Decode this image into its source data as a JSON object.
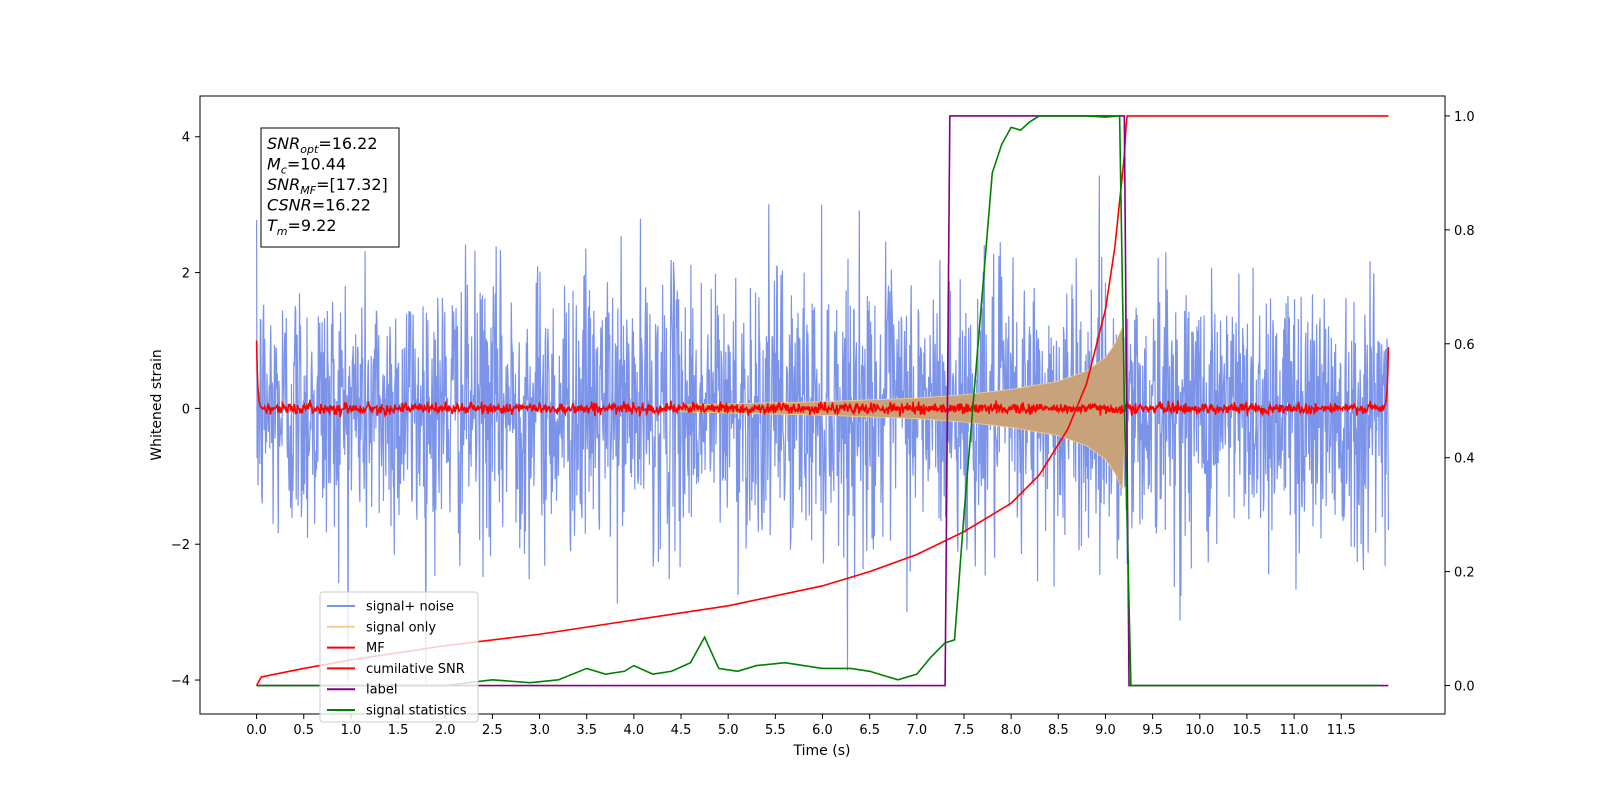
{
  "chart_data": {
    "type": "line",
    "title": "",
    "xlabel": "Time (s)",
    "ylabel": "Whitened strain",
    "xlim": [
      -0.6,
      12.6
    ],
    "ylim": [
      -4.5,
      4.6
    ],
    "y2lim": [
      -0.05,
      1.035
    ],
    "grid": false,
    "legend_position": "lower-left",
    "x_ticks": [
      "0.0",
      "0.5",
      "1.0",
      "1.5",
      "2.0",
      "2.5",
      "3.0",
      "3.5",
      "4.0",
      "4.5",
      "5.0",
      "5.5",
      "6.0",
      "6.5",
      "7.0",
      "7.5",
      "8.0",
      "8.5",
      "9.0",
      "9.5",
      "10.0",
      "10.5",
      "11.0",
      "11.5"
    ],
    "y_ticks": [
      "4",
      "2",
      "0",
      "−2",
      "−4"
    ],
    "y2_ticks": [
      "1.0",
      "0.8",
      "0.6",
      "0.4",
      "0.2",
      "0.0"
    ],
    "annotation": {
      "lines": [
        {
          "var": "SNR",
          "sub": "opt",
          "value": "=16.22"
        },
        {
          "var": "M",
          "sub": "c",
          "value": "=10.44"
        },
        {
          "var": "SNR",
          "sub": "MF",
          "value": "=[17.32]"
        },
        {
          "var": "CSNR",
          "sub": "",
          "value": "=16.22"
        },
        {
          "var": "T",
          "sub": "m",
          "value": "=9.22"
        }
      ]
    },
    "series": [
      {
        "name": "signal+ noise",
        "color": "#7b93e8",
        "axis": "left",
        "style": "noise band around zero, sigma ~1.0, range about -4 to 4.2, spanning 0 to 12 s",
        "x_range": [
          0,
          12
        ],
        "noise_sigma": 1.0
      },
      {
        "name": "signal only",
        "color": "#f5cf8a",
        "axis": "left",
        "style": "chirp envelope growing from ~0.1 at 4.5 s to ~1.2 at 9.15 s, then abruptly ending",
        "envelope": [
          [
            4.5,
            0.05
          ],
          [
            6.0,
            0.1
          ],
          [
            7.0,
            0.15
          ],
          [
            7.5,
            0.2
          ],
          [
            8.0,
            0.28
          ],
          [
            8.5,
            0.4
          ],
          [
            8.8,
            0.55
          ],
          [
            9.0,
            0.75
          ],
          [
            9.1,
            0.95
          ],
          [
            9.18,
            1.2
          ],
          [
            9.22,
            0
          ]
        ]
      },
      {
        "name": "MF",
        "color": "#ff0000",
        "axis": "left",
        "style": "matched filter output, small noise around 0 with edge spikes to ~1.0 at t=0 and t=12",
        "edge_values": [
          1.0,
          0.9
        ],
        "noise_sigma": 0.04
      },
      {
        "name": "cumilative SNR",
        "color": "#ff0000",
        "axis": "right",
        "x": [
          0,
          0.05,
          0.5,
          1,
          2,
          3,
          4,
          5,
          6,
          6.5,
          7,
          7.5,
          8,
          8.3,
          8.6,
          8.8,
          9.0,
          9.1,
          9.15,
          9.2,
          9.22,
          9.23,
          12.0
        ],
        "values": [
          0.0,
          0.015,
          0.03,
          0.045,
          0.07,
          0.09,
          0.115,
          0.14,
          0.175,
          0.2,
          0.23,
          0.27,
          0.32,
          0.37,
          0.45,
          0.53,
          0.66,
          0.77,
          0.85,
          0.93,
          0.985,
          1.0,
          1.0
        ]
      },
      {
        "name": "label",
        "color": "#800080",
        "axis": "right",
        "x": [
          0,
          7.3,
          7.35,
          9.2,
          9.25,
          12.0
        ],
        "values": [
          0.0,
          0.0,
          1.0,
          1.0,
          0.0,
          0.0
        ]
      },
      {
        "name": "signal statistics",
        "color": "#008000",
        "axis": "right",
        "x": [
          0,
          1.0,
          2.0,
          2.5,
          2.9,
          3.2,
          3.5,
          3.7,
          3.9,
          4.0,
          4.2,
          4.4,
          4.6,
          4.75,
          4.9,
          5.1,
          5.3,
          5.6,
          5.8,
          6.0,
          6.3,
          6.5,
          6.8,
          7.0,
          7.15,
          7.3,
          7.4,
          7.5,
          7.6,
          7.7,
          7.8,
          7.9,
          8.0,
          8.1,
          8.2,
          8.3,
          8.5,
          8.8,
          9.0,
          9.15,
          9.2,
          9.27,
          9.3,
          11.9
        ],
        "values": [
          0.0,
          0.0,
          0.0,
          0.01,
          0.005,
          0.01,
          0.03,
          0.02,
          0.025,
          0.035,
          0.02,
          0.025,
          0.04,
          0.085,
          0.03,
          0.025,
          0.035,
          0.04,
          0.035,
          0.03,
          0.03,
          0.025,
          0.01,
          0.02,
          0.05,
          0.075,
          0.08,
          0.3,
          0.5,
          0.7,
          0.9,
          0.95,
          0.98,
          0.975,
          0.99,
          1.0,
          1.0,
          1.0,
          0.998,
          1.0,
          0.5,
          0.0,
          0.0,
          0.0
        ]
      }
    ]
  }
}
